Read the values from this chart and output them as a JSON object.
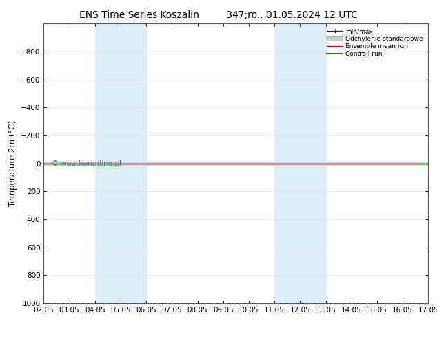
{
  "title": "ENS Time Series Koszalin         347;ro.. 01.05.2024 12 UTC",
  "ylabel": "Temperature 2m (°C)",
  "ylim_bottom": 1000,
  "ylim_top": -1000,
  "yticks": [
    -800,
    -600,
    -400,
    -200,
    0,
    200,
    400,
    600,
    800,
    1000
  ],
  "x_dates": [
    "02.05",
    "03.05",
    "04.05",
    "05.05",
    "06.05",
    "07.05",
    "08.05",
    "09.05",
    "10.05",
    "11.05",
    "12.05",
    "13.05",
    "14.05",
    "15.05",
    "16.05",
    "17.05"
  ],
  "x_positions": [
    0,
    1,
    2,
    3,
    4,
    5,
    6,
    7,
    8,
    9,
    10,
    11,
    12,
    13,
    14,
    15
  ],
  "shaded_bands": [
    {
      "xmin": 2,
      "xmax": 4,
      "color": "#ddeef8"
    },
    {
      "xmin": 9,
      "xmax": 11,
      "color": "#ddeef8"
    }
  ],
  "control_run_color": "#008800",
  "ensemble_mean_color": "#cc0000",
  "minmax_color": "#333333",
  "std_color": "#cccccc",
  "watermark": "© weatheronline.pl",
  "watermark_color": "#4477bb",
  "legend_items": [
    {
      "label": "min/max",
      "color": "#333333",
      "lw": 1.0
    },
    {
      "label": "Odchylenie standardowe",
      "color": "#cccccc",
      "lw": 6
    },
    {
      "label": "Ensemble mean run",
      "color": "#cc0000",
      "lw": 1.0
    },
    {
      "label": "Controll run",
      "color": "#008800",
      "lw": 1.5
    }
  ],
  "background_color": "#ffffff",
  "title_fontsize": 10,
  "tick_fontsize": 7.5,
  "ylabel_fontsize": 8.5
}
